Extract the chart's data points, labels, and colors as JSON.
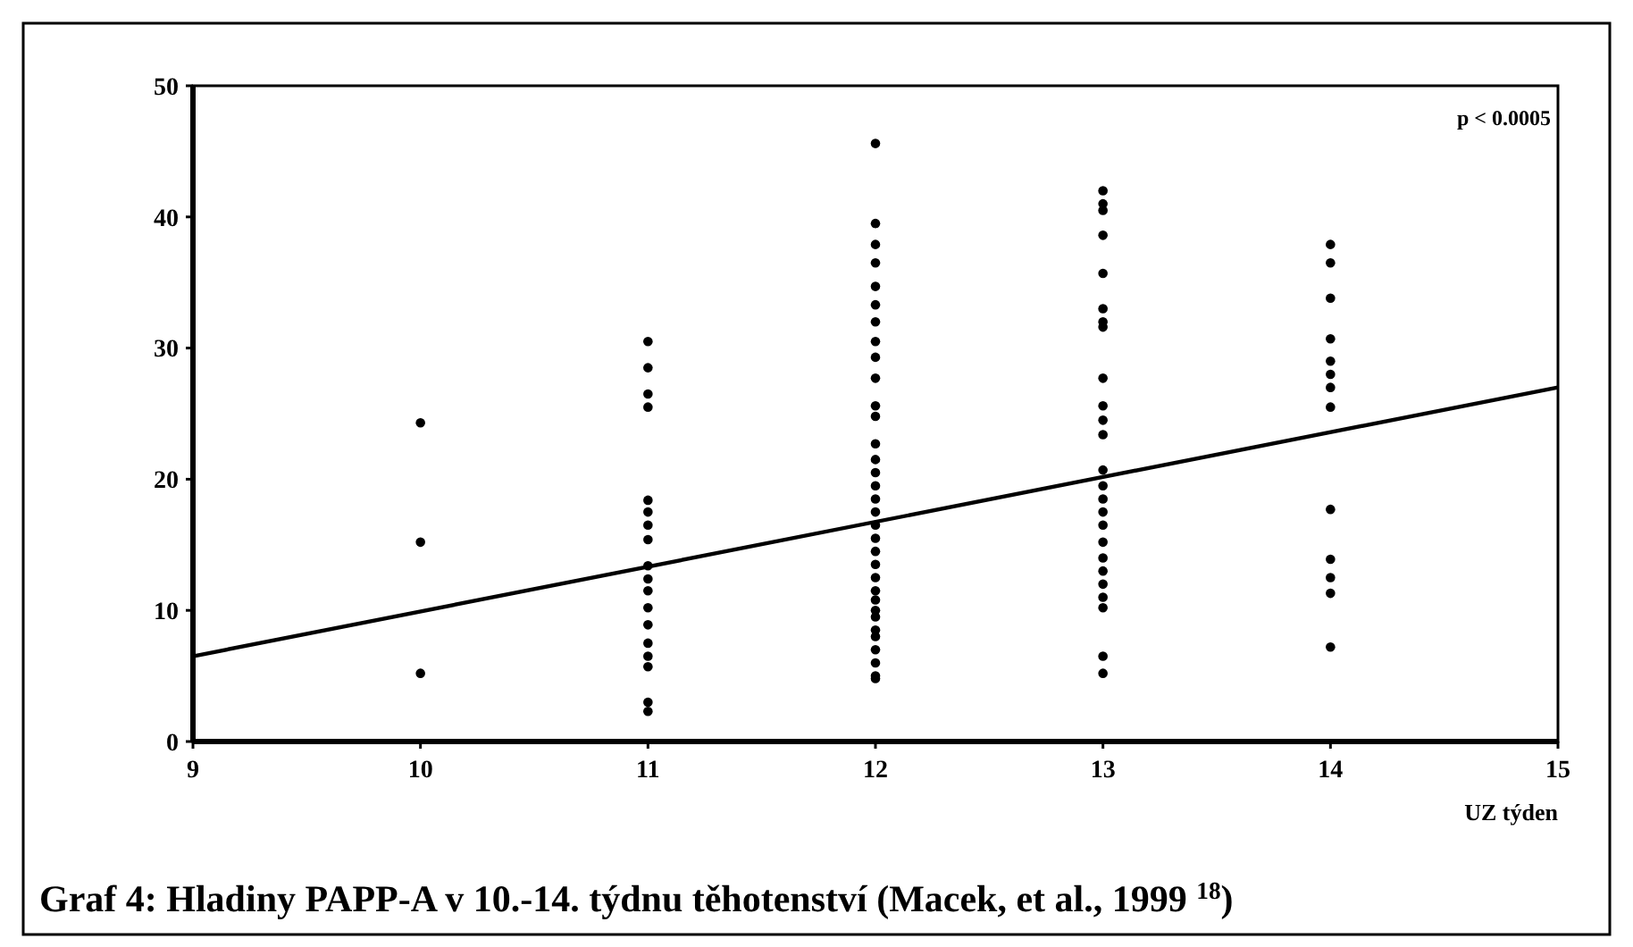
{
  "chart_data": {
    "type": "scatter",
    "title": "Graf 4: Hladiny PAPP-A v 10.-14. týdnu těhotenství (Macek, et al., 1999 $^{18}$)",
    "xlabel": "UZ týden",
    "annotations": [
      "p < 0.0005"
    ],
    "xlim": [
      9,
      15
    ],
    "xticks": [
      9,
      10,
      11,
      12,
      13,
      14,
      15
    ],
    "ylim": [
      0,
      50
    ],
    "yticks": [
      0,
      10,
      20,
      30,
      40,
      50
    ],
    "marker": "circle",
    "series": [
      {
        "color": "#000000",
        "x": [
          10,
          10,
          10,
          11,
          11,
          11,
          11,
          11,
          11,
          11,
          11,
          11,
          11,
          11,
          11,
          11,
          11,
          11,
          11,
          11,
          11,
          12,
          12,
          12,
          12,
          12,
          12,
          12,
          12,
          12,
          12,
          12,
          12,
          12,
          12,
          12,
          12,
          12,
          12,
          12,
          12,
          12,
          12,
          12,
          12,
          12,
          12,
          12,
          12,
          12,
          12,
          12,
          12,
          12,
          13,
          13,
          13,
          13,
          13,
          13,
          13,
          13,
          13,
          13,
          13,
          13,
          13,
          13,
          13,
          13,
          13,
          13,
          13,
          13,
          13,
          13,
          13,
          13,
          13,
          14,
          14,
          14,
          14,
          14,
          14,
          14,
          14,
          14,
          14,
          14,
          14,
          14
        ],
        "values": [
          24.3,
          15.2,
          5.2,
          30.5,
          28.5,
          26.5,
          25.5,
          18.4,
          17.5,
          16.5,
          15.4,
          13.4,
          12.4,
          11.5,
          10.2,
          8.9,
          7.5,
          6.5,
          5.7,
          3,
          2.3,
          45.6,
          39.5,
          37.9,
          36.5,
          34.7,
          33.3,
          32,
          30.5,
          29.3,
          27.7,
          25.6,
          24.8,
          22.7,
          21.5,
          20.5,
          19.5,
          18.5,
          17.5,
          16.5,
          15.5,
          14.5,
          13.5,
          12.5,
          11.5,
          10.8,
          10,
          9.5,
          8.5,
          8,
          7,
          6,
          5,
          4.8,
          42,
          41,
          40.5,
          38.6,
          35.7,
          33,
          32,
          31.6,
          27.7,
          25.6,
          24.5,
          23.4,
          20.7,
          19.5,
          18.5,
          17.5,
          16.5,
          15.2,
          14,
          13,
          12,
          11,
          10.2,
          6.5,
          5.2,
          37.9,
          36.5,
          33.8,
          30.7,
          29,
          28,
          27,
          25.5,
          17.7,
          13.9,
          12.5,
          11.3,
          7.2
        ]
      },
      {
        "type": "line",
        "color": "#000000",
        "x": [
          9,
          15
        ],
        "values": [
          6.5,
          27
        ],
        "line_style": "solid",
        "marker": "none"
      }
    ]
  }
}
